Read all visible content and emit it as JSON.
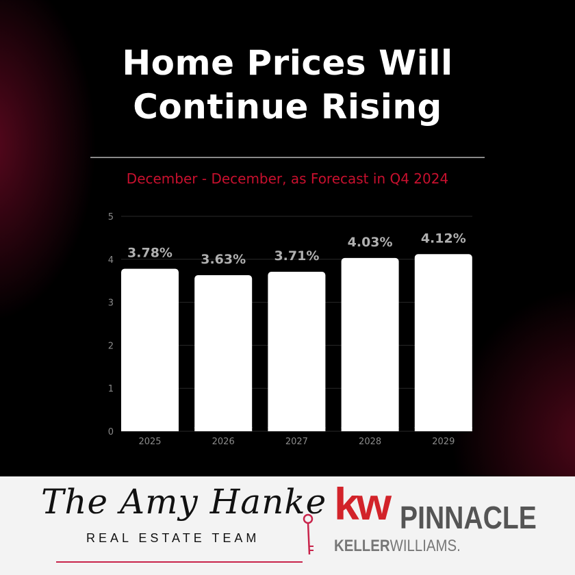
{
  "header": {
    "title_line1": "Home Prices Will",
    "title_line2": "Continue Rising",
    "subtitle": "December - December, as Forecast in Q4 2024"
  },
  "chart_data": {
    "type": "bar",
    "categories": [
      "2025",
      "2026",
      "2027",
      "2028",
      "2029"
    ],
    "values": [
      3.78,
      3.63,
      3.71,
      4.03,
      4.12
    ],
    "data_labels": [
      "3.78%",
      "3.63%",
      "3.71%",
      "4.03%",
      "4.12%"
    ],
    "title": "Home Prices Will Continue Rising",
    "subtitle": "December - December, as Forecast in Q4 2024",
    "xlabel": "",
    "ylabel": "",
    "ylim": [
      0,
      5
    ],
    "yticks": [
      "0",
      "1",
      "2",
      "3",
      "4",
      "5"
    ],
    "grid": true,
    "bar_color": "#ffffff",
    "label_color": "#b0b0b0"
  },
  "footer": {
    "logo_script": "The Amy Hanke",
    "logo_tagline": "REAL ESTATE TEAM",
    "brand_kw": "kw",
    "brand_pinnacle": "PINNACLE",
    "brand_keller_bold": "KELLER",
    "brand_keller_light": "WILLIAMS.",
    "accent_color": "#c8102e"
  }
}
